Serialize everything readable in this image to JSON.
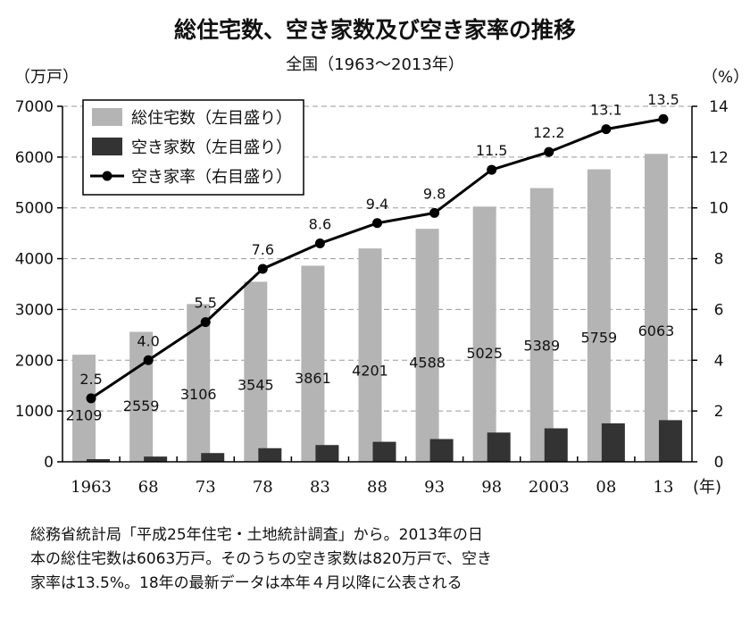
{
  "title": "総住宅数、空き家数及び空き家率の推移",
  "subtitle": "全国（1963〜2013年）",
  "chart_data": {
    "type": "bar",
    "categories": [
      "1963",
      "68",
      "73",
      "78",
      "83",
      "88",
      "93",
      "98",
      "2003",
      "08",
      "13"
    ],
    "x_unit": "(年)",
    "series": [
      {
        "name": "総住宅数（左目盛り）",
        "type": "bar",
        "axis": "left",
        "color": "#b4b4b4",
        "values": [
          2109,
          2559,
          3106,
          3545,
          3861,
          4201,
          4588,
          5025,
          5389,
          5759,
          6063
        ],
        "labels": [
          "2109",
          "2559",
          "3106",
          "3545",
          "3861",
          "4201",
          "4588",
          "5025",
          "5389",
          "5759",
          "6063"
        ]
      },
      {
        "name": "空き家数（左目盛り）",
        "type": "bar",
        "axis": "left",
        "color": "#333333",
        "values": [
          52,
          103,
          172,
          268,
          330,
          394,
          448,
          576,
          659,
          757,
          820
        ]
      },
      {
        "name": "空き家率（右目盛り）",
        "type": "line",
        "axis": "right",
        "color": "#000000",
        "values": [
          2.5,
          4.0,
          5.5,
          7.6,
          8.6,
          9.4,
          9.8,
          11.5,
          12.2,
          13.1,
          13.5
        ],
        "labels": [
          "2.5",
          "4.0",
          "5.5",
          "7.6",
          "8.6",
          "9.4",
          "9.8",
          "11.5",
          "12.2",
          "13.1",
          "13.5"
        ]
      }
    ],
    "y_left": {
      "label": "（万戸）",
      "ylim": [
        0,
        7000
      ],
      "ticks": [
        "0",
        "1000",
        "2000",
        "3000",
        "4000",
        "5000",
        "6000",
        "7000"
      ]
    },
    "y_right": {
      "label": "（%）",
      "ylim": [
        0,
        14
      ],
      "ticks": [
        "0",
        "2",
        "4",
        "6",
        "8",
        "10",
        "12",
        "14"
      ]
    },
    "grid": true,
    "legend_position": "top-left"
  },
  "note": [
    "総務省統計局「平成25年住宅・土地統計調査」から。2013年の日",
    "本の総住宅数は6063万戸。そのうちの空き家数は820万戸で、空き",
    "家率は13.5%。18年の最新データは本年４月以降に公表される"
  ]
}
